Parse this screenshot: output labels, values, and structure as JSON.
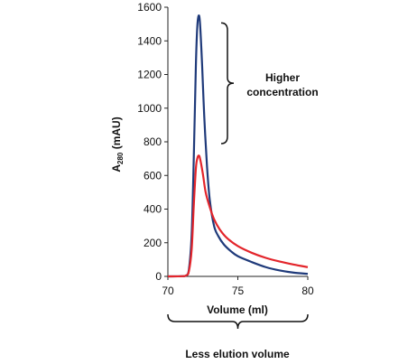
{
  "chart_data": {
    "type": "line",
    "xlabel": "Volume (ml)",
    "ylabel_main": "A",
    "ylabel_sub": "280",
    "ylabel_unit": " (mAU)",
    "xlim": [
      70,
      80
    ],
    "ylim": [
      0,
      1600
    ],
    "x_ticks": [
      70,
      75,
      80
    ],
    "y_ticks": [
      0,
      200,
      400,
      600,
      800,
      1000,
      1200,
      1400,
      1600
    ],
    "grid": false,
    "series": [
      {
        "color": "#1f3a7a",
        "points": [
          [
            70,
            0
          ],
          [
            71,
            1
          ],
          [
            71.3,
            5
          ],
          [
            71.5,
            40
          ],
          [
            71.7,
            250
          ],
          [
            71.85,
            700
          ],
          [
            72.0,
            1250
          ],
          [
            72.1,
            1480
          ],
          [
            72.2,
            1550
          ],
          [
            72.3,
            1500
          ],
          [
            72.45,
            1250
          ],
          [
            72.6,
            950
          ],
          [
            72.8,
            650
          ],
          [
            73.0,
            450
          ],
          [
            73.3,
            300
          ],
          [
            73.6,
            240
          ],
          [
            74,
            190
          ],
          [
            74.5,
            150
          ],
          [
            75,
            120
          ],
          [
            76,
            85
          ],
          [
            77,
            55
          ],
          [
            78,
            35
          ],
          [
            79,
            22
          ],
          [
            80,
            15
          ]
        ]
      },
      {
        "color": "#e3252b",
        "points": [
          [
            70,
            0
          ],
          [
            71,
            1
          ],
          [
            71.3,
            5
          ],
          [
            71.5,
            30
          ],
          [
            71.7,
            160
          ],
          [
            71.85,
            420
          ],
          [
            72.0,
            640
          ],
          [
            72.1,
            700
          ],
          [
            72.2,
            718
          ],
          [
            72.3,
            700
          ],
          [
            72.5,
            610
          ],
          [
            72.7,
            500
          ],
          [
            73.0,
            410
          ],
          [
            73.3,
            340
          ],
          [
            73.7,
            280
          ],
          [
            74.2,
            230
          ],
          [
            75,
            180
          ],
          [
            76,
            140
          ],
          [
            77,
            110
          ],
          [
            78,
            88
          ],
          [
            79,
            70
          ],
          [
            80,
            55
          ]
        ]
      }
    ],
    "annotations": {
      "higher_line1": "Higher",
      "higher_line2": "concentration",
      "less_elution": "Less elution volume"
    },
    "bracket_y_range": [
      800,
      1550
    ],
    "bracket_x_range": [
      70,
      80
    ]
  }
}
